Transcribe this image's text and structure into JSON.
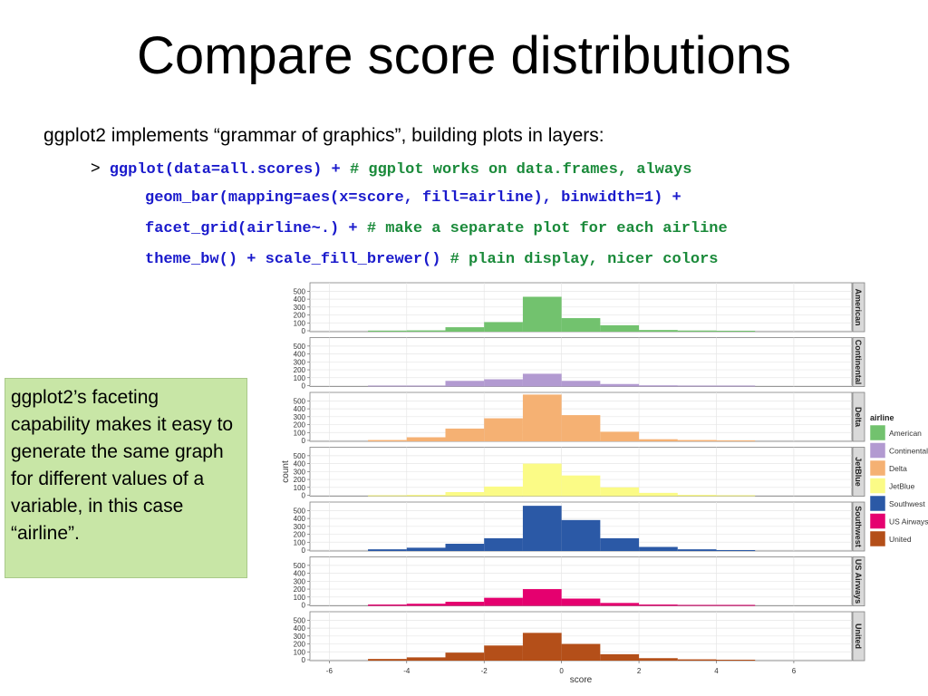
{
  "slide": {
    "title": "Compare score distributions",
    "intro": "ggplot2 implements “grammar of graphics”, building plots in layers:",
    "prompt": ">",
    "code_lines": [
      {
        "code": "ggplot(data=all.scores) + ",
        "comment": "# ggplot works on data.frames, always"
      },
      {
        "code": "geom_bar(mapping=aes(x=score, fill=airline), binwidth=1) +",
        "comment": ""
      },
      {
        "code": "facet_grid(airline~.) + ",
        "comment": "# make a separate plot for each airline"
      },
      {
        "code": "theme_bw() + scale_fill_brewer() ",
        "comment": "# plain display, nicer colors"
      }
    ],
    "note": "ggplot2’s faceting capability makes it easy to generate the same graph for different values of a variable, in this case “airline”."
  },
  "chart_data": {
    "type": "bar",
    "facet_by": "airline",
    "xlabel": "score",
    "ylabel": "count",
    "xlim": [
      -6.5,
      7.5
    ],
    "ylim": [
      0,
      550
    ],
    "x_ticks": [
      -6,
      -4,
      -2,
      0,
      2,
      4,
      6
    ],
    "y_ticks": [
      0,
      100,
      200,
      300,
      400,
      500
    ],
    "bins": [
      -5,
      -4,
      -3,
      -2,
      -1,
      0,
      1,
      2,
      3,
      4
    ],
    "binwidth": 1,
    "grid": true,
    "legend_title": "airline",
    "legend_position": "right",
    "series": [
      {
        "name": "American",
        "color": "#72c26e",
        "values": [
          2,
          5,
          45,
          110,
          430,
          160,
          70,
          10,
          3,
          0
        ]
      },
      {
        "name": "Continental",
        "color": "#b29ad1",
        "values": [
          0,
          0,
          60,
          80,
          150,
          60,
          20,
          3,
          0,
          0
        ]
      },
      {
        "name": "Delta",
        "color": "#f5b173",
        "values": [
          5,
          40,
          150,
          280,
          580,
          320,
          110,
          15,
          5,
          0
        ]
      },
      {
        "name": "JetBlue",
        "color": "#fbfb86",
        "values": [
          0,
          5,
          40,
          110,
          400,
          250,
          100,
          30,
          5,
          0
        ]
      },
      {
        "name": "Southwest",
        "color": "#2b59a6",
        "values": [
          10,
          30,
          80,
          150,
          560,
          380,
          150,
          40,
          10,
          0
        ]
      },
      {
        "name": "US Airways",
        "color": "#e5006f",
        "values": [
          5,
          15,
          40,
          90,
          200,
          80,
          25,
          5,
          0,
          0
        ]
      },
      {
        "name": "United",
        "color": "#b44f19",
        "values": [
          10,
          30,
          90,
          180,
          340,
          200,
          70,
          20,
          5,
          0
        ]
      }
    ]
  }
}
